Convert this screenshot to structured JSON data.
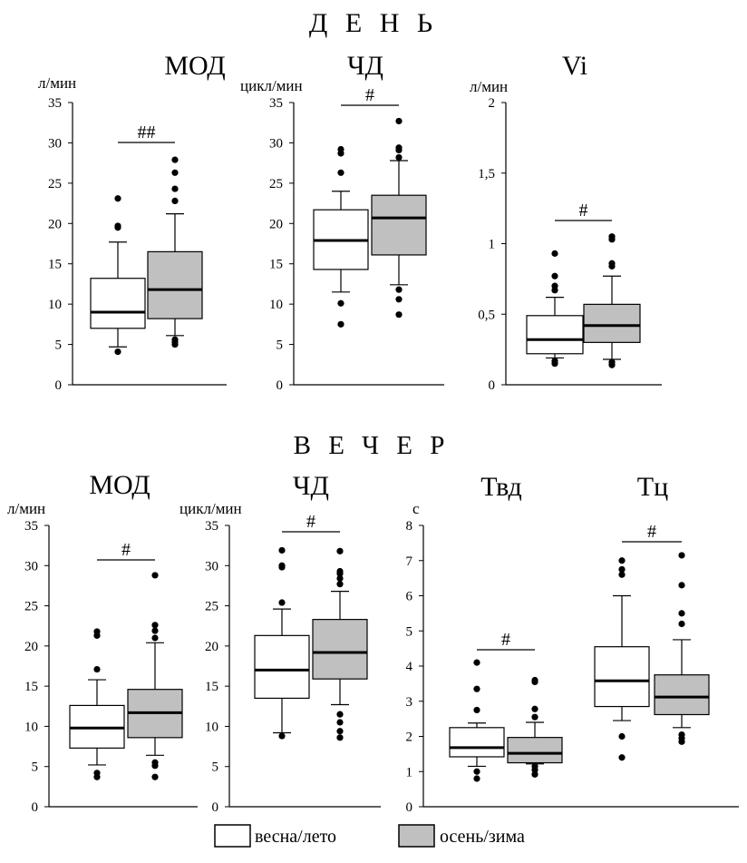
{
  "sections": {
    "top": "Д  Е  Н  Ь",
    "bottom": "В  Е  Ч  Е  Р"
  },
  "colors": {
    "spring_summer": "#ffffff",
    "autumn_winter": "#c0c0c0",
    "stroke": "#000000"
  },
  "legend": {
    "spring_summer": "весна/лето",
    "autumn_winter": "осень/зима"
  },
  "chart_data": [
    {
      "id": "day-mod",
      "type": "boxplot",
      "title": "МОД",
      "ylabel": "л/мин",
      "ylim": [
        0,
        35
      ],
      "yticks": [
        "0",
        "5",
        "10",
        "15",
        "20",
        "25",
        "30",
        "35"
      ],
      "significance": "##",
      "series": [
        {
          "name": "весна/лето",
          "whisker_low": 4.7,
          "q1": 7.0,
          "median": 9.0,
          "q3": 13.2,
          "whisker_high": 17.7,
          "outliers": [
            4.1,
            19.5,
            19.7,
            23.1
          ]
        },
        {
          "name": "осень/зима",
          "whisker_low": 6.1,
          "q1": 8.2,
          "median": 11.8,
          "q3": 16.5,
          "whisker_high": 21.2,
          "outliers": [
            5.0,
            5.3,
            5.6,
            22.8,
            24.3,
            26.3,
            27.9
          ]
        }
      ]
    },
    {
      "id": "day-rr",
      "type": "boxplot",
      "title": "ЧД",
      "ylabel": "цикл/мин",
      "ylim": [
        0,
        35
      ],
      "yticks": [
        "0",
        "5",
        "10",
        "15",
        "20",
        "25",
        "30",
        "35"
      ],
      "significance": "#",
      "series": [
        {
          "name": "весна/лето",
          "whisker_low": 11.5,
          "q1": 14.3,
          "median": 17.9,
          "q3": 21.7,
          "whisker_high": 24.0,
          "outliers": [
            7.5,
            10.1,
            26.3,
            28.7,
            29.2
          ]
        },
        {
          "name": "осень/зима",
          "whisker_low": 12.4,
          "q1": 16.1,
          "median": 20.7,
          "q3": 23.5,
          "whisker_high": 27.8,
          "outliers": [
            8.7,
            10.6,
            11.8,
            28.2,
            29.1,
            29.4,
            32.7
          ]
        }
      ]
    },
    {
      "id": "day-vi",
      "type": "boxplot",
      "title": "Vi",
      "ylabel": "л/мин",
      "ylim": [
        0,
        2
      ],
      "yticks": [
        "0",
        "0,5",
        "1",
        "1,5",
        "2"
      ],
      "significance": "#",
      "series": [
        {
          "name": "весна/лето",
          "whisker_low": 0.19,
          "q1": 0.22,
          "median": 0.32,
          "q3": 0.49,
          "whisker_high": 0.62,
          "outliers": [
            0.15,
            0.17,
            0.67,
            0.7,
            0.77,
            0.93
          ]
        },
        {
          "name": "осень/зима",
          "whisker_low": 0.18,
          "q1": 0.3,
          "median": 0.42,
          "q3": 0.57,
          "whisker_high": 0.77,
          "outliers": [
            0.14,
            0.16,
            0.84,
            0.86,
            1.03,
            1.05
          ]
        }
      ]
    },
    {
      "id": "evening-mod",
      "type": "boxplot",
      "title": "МОД",
      "ylabel": "л/мин",
      "ylim": [
        0,
        35
      ],
      "yticks": [
        "0",
        "5",
        "10",
        "15",
        "20",
        "25",
        "30",
        "35"
      ],
      "significance": "#",
      "series": [
        {
          "name": "весна/лето",
          "whisker_low": 5.2,
          "q1": 7.3,
          "median": 9.8,
          "q3": 12.6,
          "whisker_high": 15.8,
          "outliers": [
            3.7,
            4.2,
            17.1,
            21.3,
            21.8
          ]
        },
        {
          "name": "осень/зима",
          "whisker_low": 6.4,
          "q1": 8.6,
          "median": 11.7,
          "q3": 14.6,
          "whisker_high": 20.4,
          "outliers": [
            3.7,
            5.1,
            5.5,
            21.0,
            21.9,
            22.6,
            28.8
          ]
        }
      ]
    },
    {
      "id": "evening-rr",
      "type": "boxplot",
      "title": "ЧД",
      "ylabel": "цикл/мин",
      "ylim": [
        0,
        35
      ],
      "yticks": [
        "0",
        "5",
        "10",
        "15",
        "20",
        "25",
        "30",
        "35"
      ],
      "significance": "#",
      "series": [
        {
          "name": "весна/лето",
          "whisker_low": 9.2,
          "q1": 13.5,
          "median": 17.0,
          "q3": 21.3,
          "whisker_high": 24.6,
          "outliers": [
            8.8,
            25.4,
            29.8,
            30.0,
            31.9
          ]
        },
        {
          "name": "осень/зима",
          "whisker_low": 12.7,
          "q1": 15.9,
          "median": 19.2,
          "q3": 23.3,
          "whisker_high": 26.8,
          "outliers": [
            8.6,
            9.4,
            10.5,
            11.5,
            27.7,
            28.4,
            29.0,
            29.3,
            31.8
          ]
        }
      ]
    },
    {
      "id": "evening-time",
      "type": "boxplot",
      "ylabel": "с",
      "ylim": [
        0,
        8
      ],
      "yticks": [
        "0",
        "1",
        "2",
        "3",
        "4",
        "5",
        "6",
        "7",
        "8"
      ],
      "groups": [
        {
          "title": "Твд",
          "significance": "#",
          "series": [
            {
              "name": "весна/лето",
              "whisker_low": 1.15,
              "q1": 1.42,
              "median": 1.68,
              "q3": 2.25,
              "whisker_high": 2.38,
              "outliers": [
                0.8,
                1.0,
                2.75,
                3.35,
                4.1
              ]
            },
            {
              "name": "осень/зима",
              "whisker_low": 1.22,
              "q1": 1.25,
              "median": 1.52,
              "q3": 1.97,
              "whisker_high": 2.4,
              "outliers": [
                0.92,
                1.05,
                1.15,
                2.55,
                2.78,
                3.55,
                3.6
              ]
            }
          ]
        },
        {
          "title": "Тц",
          "significance": "#",
          "series": [
            {
              "name": "весна/лето",
              "whisker_low": 2.45,
              "q1": 2.85,
              "median": 3.58,
              "q3": 4.55,
              "whisker_high": 6.0,
              "outliers": [
                1.4,
                2.0,
                6.6,
                6.75,
                7.0
              ]
            },
            {
              "name": "осень/зима",
              "whisker_low": 2.25,
              "q1": 2.62,
              "median": 3.12,
              "q3": 3.75,
              "whisker_high": 4.75,
              "outliers": [
                1.85,
                1.95,
                2.05,
                5.2,
                5.5,
                6.3,
                7.15
              ]
            }
          ]
        }
      ]
    }
  ]
}
